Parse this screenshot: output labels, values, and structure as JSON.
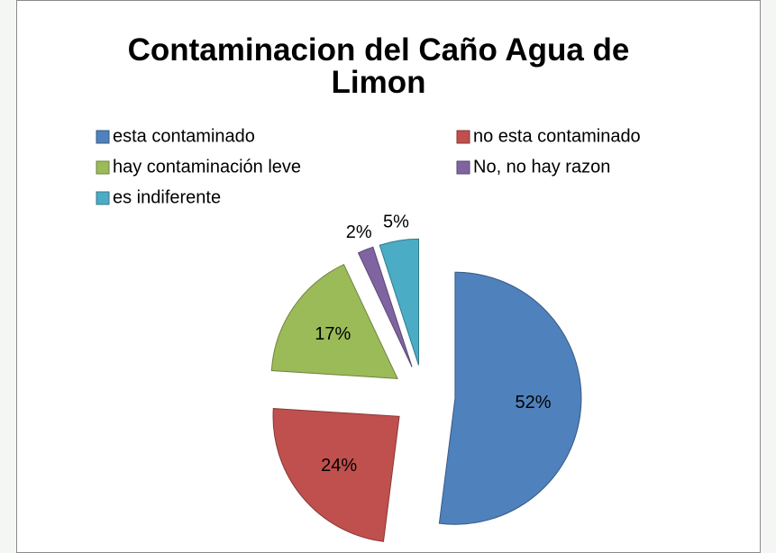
{
  "chart_data": {
    "type": "pie",
    "title": "Contaminacion del Caño Agua de Limon",
    "categories": [
      "esta contaminado",
      "no esta contaminado",
      "hay contaminación leve",
      "No, no hay razon",
      "es indiferente"
    ],
    "values": [
      52,
      24,
      17,
      2,
      5
    ],
    "value_labels": [
      "52%",
      "24%",
      "17%",
      "2%",
      "5%"
    ],
    "colors": [
      "#4f81bd",
      "#c0504d",
      "#9bbb59",
      "#8064a2",
      "#4bacc6"
    ],
    "legend": "top",
    "exploded": true
  }
}
